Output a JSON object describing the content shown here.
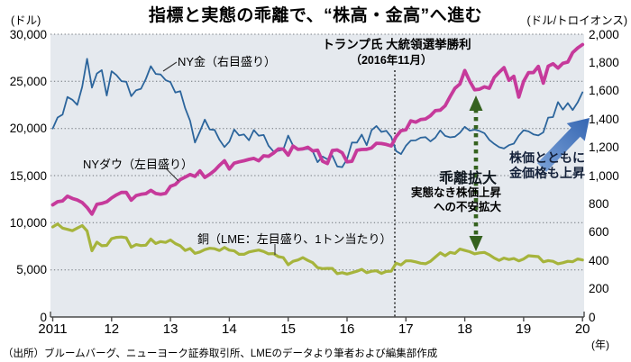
{
  "header": {
    "title": "指標と実態の乖離で、“株高・金高”へ進む",
    "left_unit": "(ドル)",
    "right_unit": "(ドル/トロイオンス)"
  },
  "chart_data": {
    "type": "line",
    "plot_bg_color": "#e5e9ee",
    "x_range": [
      2011,
      2020
    ],
    "x_tick_labels": [
      "2011",
      "12",
      "13",
      "14",
      "15",
      "16",
      "17",
      "18",
      "19",
      "20"
    ],
    "x_tick_years": [
      2011,
      2012,
      2013,
      2014,
      2015,
      2016,
      2017,
      2018,
      2019,
      2020
    ],
    "x_unit": "(年)",
    "left_axis": {
      "unit": "ドル",
      "range": [
        0,
        30000
      ],
      "tick_labels": [
        "30,000",
        "25,000",
        "20,000",
        "15,000",
        "10,000",
        "5,000",
        "0"
      ],
      "tick_values": [
        30000,
        25000,
        20000,
        15000,
        10000,
        5000,
        0
      ],
      "gridline_values": [
        30000,
        25000,
        20000,
        15000,
        10000,
        5000
      ]
    },
    "right_axis": {
      "unit": "ドル/トロイオンス",
      "range": [
        0,
        2000
      ],
      "tick_labels": [
        "2,000",
        "1,800",
        "1,600",
        "1,400",
        "1,200",
        "1,000",
        "800",
        "600",
        "400",
        "200",
        "0"
      ],
      "tick_values": [
        2000,
        1800,
        1600,
        1400,
        1200,
        1000,
        800,
        600,
        400,
        200,
        0
      ]
    },
    "series": [
      {
        "name": "銅（LME：左目盛り、1トン当たり）",
        "axis": "left",
        "color": "#a6b43c",
        "width": 3.2,
        "start_year": 2011,
        "step_years": 0.08333,
        "values": [
          9555,
          9868,
          9430,
          9300,
          9151,
          9430,
          9700,
          9120,
          7018,
          7940,
          7560,
          7600,
          8310,
          8450,
          8480,
          8400,
          7400,
          7685,
          7580,
          7615,
          8268,
          7800,
          8000,
          7915,
          8167,
          7790,
          7543,
          7060,
          7260,
          6750,
          6900,
          7150,
          7290,
          7240,
          7050,
          7376,
          7090,
          7010,
          6650,
          6650,
          6900,
          7000,
          7100,
          6950,
          6700,
          6730,
          6400,
          6300,
          5540,
          5900,
          6050,
          6300,
          6000,
          5760,
          5240,
          5130,
          5160,
          5150,
          4600,
          4700,
          4560,
          4700,
          4850,
          5050,
          4700,
          4850,
          4900,
          4620,
          4832,
          4850,
          5700,
          5520,
          5950,
          5950,
          5850,
          5700,
          5650,
          5900,
          6350,
          6800,
          6500,
          6850,
          6750,
          7200,
          7060,
          6930,
          6700,
          6800,
          6850,
          6600,
          6250,
          6000,
          6250,
          6100,
          6200,
          5950,
          6150,
          6500,
          6450,
          6400,
          5850,
          5980,
          5900,
          5650,
          5750,
          5900,
          5870,
          6150,
          6050
        ]
      },
      {
        "name": "NY金（右目盛り）",
        "axis": "right",
        "color": "#2c659c",
        "width": 1.8,
        "start_year": 2011,
        "step_years": 0.08333,
        "values": [
          1333,
          1411,
          1432,
          1556,
          1536,
          1500,
          1628,
          1826,
          1622,
          1722,
          1746,
          1566,
          1738,
          1711,
          1668,
          1664,
          1562,
          1604,
          1614,
          1685,
          1774,
          1719,
          1715,
          1676,
          1661,
          1588,
          1597,
          1477,
          1387,
          1234,
          1312,
          1396,
          1327,
          1323,
          1253,
          1202,
          1240,
          1326,
          1284,
          1291,
          1250,
          1322,
          1282,
          1287,
          1211,
          1171,
          1175,
          1184,
          1283,
          1213,
          1183,
          1184,
          1190,
          1172,
          1095,
          1135,
          1115,
          1141,
          1065,
          1060,
          1116,
          1234,
          1233,
          1290,
          1215,
          1321,
          1351,
          1309,
          1317,
          1273,
          1174,
          1152,
          1211,
          1248,
          1249,
          1268,
          1272,
          1242,
          1268,
          1320,
          1281,
          1271,
          1275,
          1303,
          1345,
          1318,
          1325,
          1316,
          1300,
          1253,
          1224,
          1201,
          1192,
          1215,
          1226,
          1282,
          1321,
          1313,
          1292,
          1284,
          1306,
          1410,
          1414,
          1520,
          1466,
          1513,
          1464,
          1517,
          1589
        ]
      },
      {
        "name": "NYダウ（左目盛り）",
        "axis": "left",
        "color": "#c63a9b",
        "width": 3.8,
        "start_year": 2011,
        "step_years": 0.08333,
        "values": [
          11892,
          12226,
          12320,
          12811,
          12570,
          12414,
          12143,
          11614,
          10913,
          11955,
          12046,
          12218,
          12633,
          12952,
          13212,
          13214,
          12393,
          12880,
          13009,
          13091,
          13437,
          13096,
          13026,
          13104,
          13861,
          14054,
          14579,
          14840,
          15116,
          14910,
          15500,
          14810,
          15130,
          15546,
          16086,
          16577,
          15699,
          16322,
          16458,
          16581,
          16717,
          16827,
          16563,
          17098,
          17043,
          17391,
          17828,
          17823,
          17165,
          18133,
          17776,
          17841,
          18011,
          17620,
          17690,
          16528,
          16285,
          17664,
          17720,
          17425,
          16466,
          16517,
          17685,
          17774,
          17787,
          17930,
          18432,
          18401,
          18308,
          18142,
          19124,
          19763,
          19864,
          20812,
          20663,
          20941,
          21009,
          21350,
          21891,
          21948,
          22405,
          23377,
          24272,
          24719,
          26149,
          25029,
          24103,
          24163,
          24416,
          24271,
          25415,
          25965,
          26458,
          25116,
          25538,
          23327,
          25000,
          25916,
          25929,
          26593,
          24815,
          26600,
          26864,
          26403,
          26917,
          27046,
          28051,
          28538,
          28900
        ]
      }
    ],
    "gridline_color": "#6e747a",
    "axis_color": "#4a4a4a"
  },
  "annotations": {
    "trump_line1": "トランプ氏 大統領選挙勝利",
    "trump_line2": "（2016年11月）",
    "trump_event_x": 2016.83,
    "divergence_label": "乖離拡大",
    "anxiety_line1": "実態なき株価上昇",
    "anxiety_line2": "への不安拡大",
    "rise_line1": "株価とともに",
    "rise_line2": "金価格も上昇",
    "green_arrow_color": "#35621f",
    "blue_arrow_color_from": "#7da3d8",
    "blue_arrow_color_to": "#3566b2"
  },
  "series_labels": {
    "gold": "NY金（右目盛り）",
    "dow": "NYダウ（左目盛り）",
    "copper": "銅（LME：左目盛り、1トン当たり）"
  },
  "footer": {
    "source": "（出所）ブルームバーグ、ニューヨーク証券取引所、LMEのデータより筆者および編集部作成"
  }
}
